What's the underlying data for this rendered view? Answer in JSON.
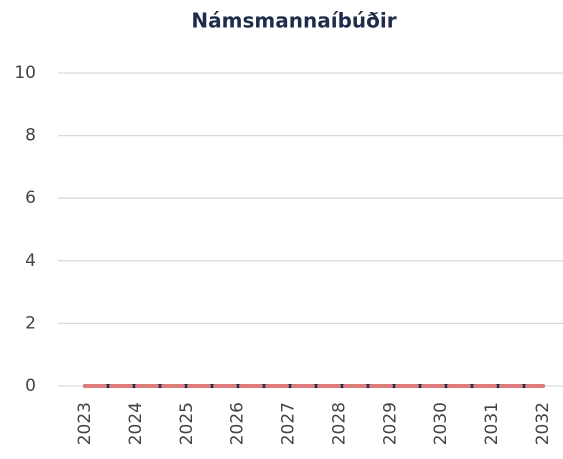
{
  "chart_data": {
    "type": "line",
    "title": "Námsmannaíbúðir",
    "categories": [
      "2023",
      "2024",
      "2025",
      "2026",
      "2027",
      "2028",
      "2029",
      "2030",
      "2031",
      "2032"
    ],
    "series": [
      {
        "color": "#1f2d4a",
        "values": [
          0,
          0,
          0,
          0,
          0,
          0,
          0,
          0,
          0,
          0
        ]
      },
      {
        "color": "#e07b7b",
        "dashed": true,
        "values": [
          0,
          0,
          0,
          0,
          0,
          0,
          0,
          0,
          0,
          0
        ]
      }
    ],
    "ylim": [
      0,
      10
    ],
    "yticks": [
      0,
      2,
      4,
      6,
      8,
      10
    ],
    "grid": true
  }
}
